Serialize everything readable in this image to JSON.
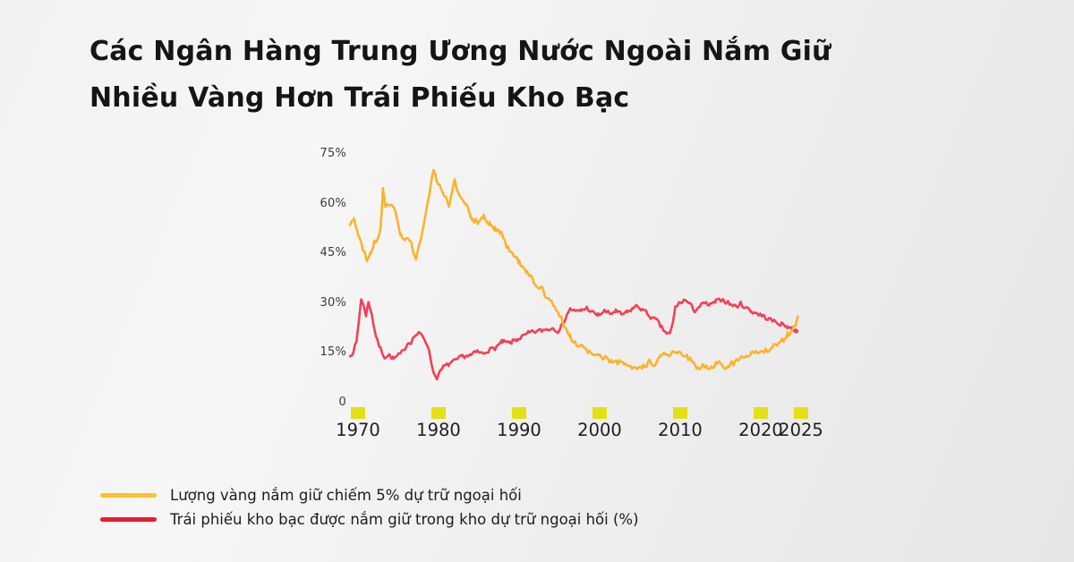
{
  "title": {
    "line1": "Các Ngân Hàng Trung Ương Nước Ngoài Nắm Giữ",
    "line2": "Nhiều Vàng Hơn Trái Phiếu Kho Bạc"
  },
  "colors": {
    "gold_line": "#FBB32B",
    "treasury_line": "#F04158",
    "legend_gold": "#FCC12B",
    "legend_treasury": "#E81C2E",
    "tick_square": "#E5E014",
    "title_text": "#151515",
    "axis_text": "#3b3b3b",
    "year_text": "#1f1f1f"
  },
  "chart_data": {
    "type": "line",
    "title": "",
    "xlabel": "",
    "ylabel": "",
    "grid": false,
    "legend_position": "bottom-left",
    "xlim": [
      1969,
      2025
    ],
    "ylim": [
      0,
      75
    ],
    "y_ticks": [
      {
        "label": "75%",
        "value": 75
      },
      {
        "label": "60%",
        "value": 60
      },
      {
        "label": "45%",
        "value": 45
      },
      {
        "label": "30%",
        "value": 30
      },
      {
        "label": "15%",
        "value": 15
      },
      {
        "label": "0",
        "value": 0
      }
    ],
    "x_ticks": [
      {
        "label": "1970",
        "year": 1970
      },
      {
        "label": "1980",
        "year": 1980
      },
      {
        "label": "1990",
        "year": 1990
      },
      {
        "label": "2000",
        "year": 2000
      },
      {
        "label": "2010",
        "year": 2010
      },
      {
        "label": "2020",
        "year": 2020
      },
      {
        "label": "2025",
        "year": 2025
      }
    ],
    "series": [
      {
        "name": "treasuries-share",
        "color": "#F04158",
        "end_dot": true,
        "points": [
          [
            1969.0,
            14
          ],
          [
            1969.4,
            15.5
          ],
          [
            1969.8,
            18
          ],
          [
            1970.1,
            24.5
          ],
          [
            1970.4,
            31.5
          ],
          [
            1970.7,
            29
          ],
          [
            1971.0,
            26.5
          ],
          [
            1971.3,
            30.3
          ],
          [
            1971.7,
            27
          ],
          [
            1972.0,
            22.5
          ],
          [
            1972.4,
            18.5
          ],
          [
            1972.8,
            16.2
          ],
          [
            1973.3,
            13.8
          ],
          [
            1973.9,
            14.3
          ],
          [
            1974.4,
            13.2
          ],
          [
            1975.0,
            14.2
          ],
          [
            1975.6,
            15.5
          ],
          [
            1976.1,
            17.8
          ],
          [
            1976.6,
            18.4
          ],
          [
            1977.1,
            20.3
          ],
          [
            1977.7,
            20.8
          ],
          [
            1978.2,
            19.5
          ],
          [
            1978.6,
            17.6
          ],
          [
            1979.0,
            13.5
          ],
          [
            1979.4,
            8.8
          ],
          [
            1979.8,
            7.6
          ],
          [
            1980.2,
            9.2
          ],
          [
            1980.6,
            10.8
          ],
          [
            1981.3,
            11.6
          ],
          [
            1982.1,
            12.7
          ],
          [
            1983.0,
            14.0
          ],
          [
            1984.0,
            14.3
          ],
          [
            1984.8,
            15.4
          ],
          [
            1985.5,
            14.8
          ],
          [
            1986.2,
            15.8
          ],
          [
            1987.0,
            16.5
          ],
          [
            1987.9,
            18.3
          ],
          [
            1988.8,
            18.0
          ],
          [
            1989.7,
            19.0
          ],
          [
            1990.5,
            20.0
          ],
          [
            1991.2,
            21.0
          ],
          [
            1992.0,
            21.4
          ],
          [
            1992.8,
            21.8
          ],
          [
            1993.6,
            22.2
          ],
          [
            1994.3,
            22.5
          ],
          [
            1994.8,
            21.6
          ],
          [
            1995.4,
            23.5
          ],
          [
            1995.9,
            26.5
          ],
          [
            1996.4,
            28.4
          ],
          [
            1997.0,
            27.4
          ],
          [
            1997.7,
            27.8
          ],
          [
            1998.4,
            28.6
          ],
          [
            1999.1,
            27.2
          ],
          [
            1999.8,
            26.4
          ],
          [
            2000.6,
            27.6
          ],
          [
            2001.3,
            26.8
          ],
          [
            2002.0,
            27.6
          ],
          [
            2002.7,
            26.6
          ],
          [
            2003.4,
            27.2
          ],
          [
            2004.1,
            28.4
          ],
          [
            2004.7,
            29.2
          ],
          [
            2005.3,
            28.0
          ],
          [
            2005.9,
            27.0
          ],
          [
            2006.5,
            25.4
          ],
          [
            2007.1,
            24.8
          ],
          [
            2007.7,
            22.6
          ],
          [
            2008.3,
            21.0
          ],
          [
            2008.7,
            20.6
          ],
          [
            2009.1,
            24.0
          ],
          [
            2009.4,
            28.9
          ],
          [
            2010.0,
            30.2
          ],
          [
            2010.6,
            31.0
          ],
          [
            2011.2,
            29.6
          ],
          [
            2011.8,
            27.8
          ],
          [
            2012.4,
            29.0
          ],
          [
            2013.0,
            30.0
          ],
          [
            2013.7,
            29.4
          ],
          [
            2014.4,
            30.4
          ],
          [
            2015.1,
            31.2
          ],
          [
            2015.7,
            30.4
          ],
          [
            2016.3,
            29.6
          ],
          [
            2016.9,
            29.0
          ],
          [
            2017.5,
            29.8
          ],
          [
            2018.1,
            28.8
          ],
          [
            2018.8,
            27.6
          ],
          [
            2019.5,
            27.0
          ],
          [
            2020.2,
            26.2
          ],
          [
            2021.0,
            25.2
          ],
          [
            2021.8,
            24.4
          ],
          [
            2022.6,
            23.6
          ],
          [
            2023.3,
            23.0
          ],
          [
            2023.9,
            22.4
          ],
          [
            2024.4,
            21.6
          ]
        ]
      },
      {
        "name": "gold-share",
        "color": "#FBB32B",
        "end_dot": false,
        "points": [
          [
            1969.0,
            53.5
          ],
          [
            1969.5,
            55.5
          ],
          [
            1970.0,
            51
          ],
          [
            1970.6,
            46
          ],
          [
            1971.1,
            43.2
          ],
          [
            1971.6,
            45.5
          ],
          [
            1972.1,
            48.5
          ],
          [
            1972.5,
            50
          ],
          [
            1972.8,
            53
          ],
          [
            1973.1,
            64
          ],
          [
            1973.4,
            58.5
          ],
          [
            1973.9,
            60
          ],
          [
            1974.4,
            59.5
          ],
          [
            1974.8,
            56.5
          ],
          [
            1975.3,
            50.5
          ],
          [
            1975.8,
            48.5
          ],
          [
            1976.2,
            49.5
          ],
          [
            1976.7,
            47.5
          ],
          [
            1977.2,
            43.2
          ],
          [
            1977.6,
            48
          ],
          [
            1978.1,
            53
          ],
          [
            1978.6,
            59
          ],
          [
            1979.0,
            65
          ],
          [
            1979.4,
            70.5
          ],
          [
            1979.7,
            68
          ],
          [
            1980.1,
            65.5
          ],
          [
            1980.5,
            63
          ],
          [
            1980.9,
            61.5
          ],
          [
            1981.3,
            59
          ],
          [
            1981.7,
            63.5
          ],
          [
            1982.0,
            67
          ],
          [
            1982.4,
            63.5
          ],
          [
            1983.0,
            61.5
          ],
          [
            1983.7,
            58
          ],
          [
            1984.2,
            55
          ],
          [
            1984.9,
            54.5
          ],
          [
            1985.6,
            55.9
          ],
          [
            1986.3,
            54
          ],
          [
            1987.0,
            52.2
          ],
          [
            1987.8,
            51.5
          ],
          [
            1988.6,
            46.5
          ],
          [
            1989.3,
            45
          ],
          [
            1990.0,
            42.5
          ],
          [
            1991.0,
            39.5
          ],
          [
            1991.8,
            36.5
          ],
          [
            1992.4,
            34.5
          ],
          [
            1992.7,
            35.5
          ],
          [
            1993.2,
            32.5
          ],
          [
            1993.8,
            31
          ],
          [
            1994.4,
            28.5
          ],
          [
            1995.0,
            26.5
          ],
          [
            1995.6,
            23.5
          ],
          [
            1996.3,
            20
          ],
          [
            1997.0,
            18
          ],
          [
            1997.8,
            16.7
          ],
          [
            1998.5,
            15.5
          ],
          [
            1999.2,
            14.5
          ],
          [
            2000.0,
            13.8
          ],
          [
            2000.8,
            13.2
          ],
          [
            2001.6,
            12.6
          ],
          [
            2002.4,
            12.2
          ],
          [
            2003.2,
            11.4
          ],
          [
            2004.0,
            10.4
          ],
          [
            2004.8,
            10.0
          ],
          [
            2005.6,
            11.0
          ],
          [
            2006.2,
            12.2
          ],
          [
            2006.8,
            11.6
          ],
          [
            2007.4,
            13.2
          ],
          [
            2008.0,
            14.6
          ],
          [
            2008.6,
            13.8
          ],
          [
            2009.2,
            15.2
          ],
          [
            2009.8,
            15.8
          ],
          [
            2010.4,
            14.6
          ],
          [
            2011.0,
            13.4
          ],
          [
            2011.6,
            11.8
          ],
          [
            2012.2,
            10.2
          ],
          [
            2012.8,
            11.4
          ],
          [
            2013.4,
            10.4
          ],
          [
            2014.0,
            10.8
          ],
          [
            2014.6,
            12.4
          ],
          [
            2015.2,
            11.4
          ],
          [
            2015.8,
            10.2
          ],
          [
            2016.4,
            11.8
          ],
          [
            2017.0,
            12.4
          ],
          [
            2017.6,
            13.4
          ],
          [
            2018.2,
            14.0
          ],
          [
            2019.0,
            14.8
          ],
          [
            2019.8,
            15.4
          ],
          [
            2020.6,
            15.8
          ],
          [
            2021.4,
            16.6
          ],
          [
            2022.2,
            18.0
          ],
          [
            2022.9,
            19.2
          ],
          [
            2023.4,
            20.8
          ],
          [
            2023.9,
            22.2
          ],
          [
            2024.3,
            23.8
          ],
          [
            2024.6,
            26.0
          ]
        ]
      }
    ]
  },
  "legend": {
    "items": [
      {
        "label": "Lượng vàng nắm giữ chiếm 5% dự trữ ngoại hối",
        "color": "#FCC12B"
      },
      {
        "label": "Trái phiếu kho bạc được nắm giữ trong kho dự trữ ngoại hối (%)",
        "color": "#E81C2E"
      }
    ]
  }
}
